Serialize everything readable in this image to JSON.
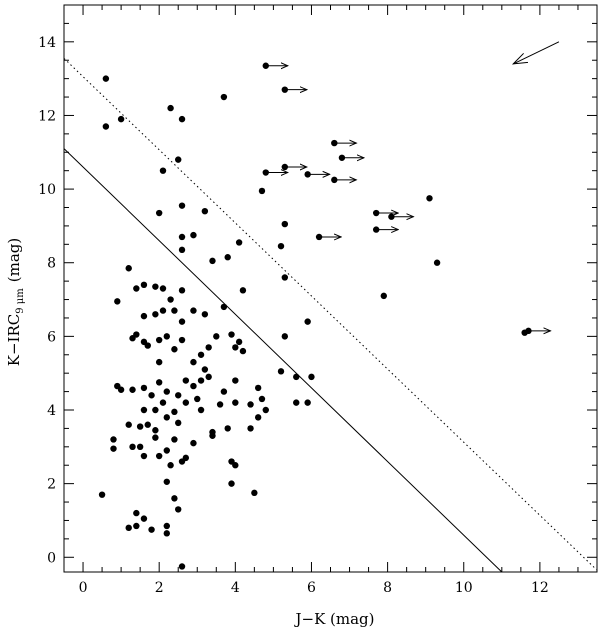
{
  "chart_data": {
    "type": "scatter",
    "xlabel": "J−K (mag)",
    "ylabel_main": "K−IRC",
    "ylabel_sub": "9 μm",
    "ylabel_unit": "(mag)",
    "xlim": [
      -0.5,
      13.5
    ],
    "ylim": [
      -0.4,
      15.0
    ],
    "x_ticks": [
      0,
      2,
      4,
      6,
      8,
      10,
      12
    ],
    "y_ticks": [
      0,
      2,
      4,
      6,
      8,
      10,
      12,
      14
    ],
    "x_tick_labels": [
      "0",
      "2",
      "4",
      "6",
      "8",
      "10",
      "12"
    ],
    "y_tick_labels": [
      "0",
      "2",
      "4",
      "6",
      "8",
      "10",
      "12",
      "14"
    ],
    "grid": false,
    "lines": [
      {
        "style": "solid",
        "x": [
          -0.5,
          11.0
        ],
        "y": [
          11.1,
          -0.4
        ]
      },
      {
        "style": "dotted",
        "x": [
          -0.5,
          13.5
        ],
        "y": [
          13.55,
          -0.35
        ]
      }
    ],
    "reddening_vector": {
      "x": [
        12.5,
        11.3
      ],
      "y": [
        14.0,
        13.4
      ]
    },
    "lower_limits": [
      {
        "x": 4.8,
        "y": 13.35
      },
      {
        "x": 5.3,
        "y": 12.7
      },
      {
        "x": 4.8,
        "y": 10.45
      },
      {
        "x": 5.3,
        "y": 10.6
      },
      {
        "x": 5.9,
        "y": 10.4
      },
      {
        "x": 6.6,
        "y": 10.25
      },
      {
        "x": 6.6,
        "y": 11.25
      },
      {
        "x": 6.8,
        "y": 10.85
      },
      {
        "x": 7.7,
        "y": 9.35
      },
      {
        "x": 8.1,
        "y": 9.25
      },
      {
        "x": 7.7,
        "y": 8.9
      },
      {
        "x": 6.2,
        "y": 8.7
      },
      {
        "x": 11.7,
        "y": 6.15
      }
    ],
    "points": [
      [
        0.6,
        13.0
      ],
      [
        0.6,
        11.7
      ],
      [
        1.0,
        11.9
      ],
      [
        2.3,
        12.2
      ],
      [
        2.6,
        11.9
      ],
      [
        3.7,
        12.5
      ],
      [
        2.5,
        10.8
      ],
      [
        2.1,
        10.5
      ],
      [
        4.7,
        9.95
      ],
      [
        2.6,
        9.55
      ],
      [
        2.0,
        9.35
      ],
      [
        3.2,
        9.4
      ],
      [
        5.3,
        9.05
      ],
      [
        5.2,
        8.45
      ],
      [
        2.9,
        8.75
      ],
      [
        2.6,
        8.7
      ],
      [
        2.6,
        8.35
      ],
      [
        3.8,
        8.15
      ],
      [
        3.4,
        8.05
      ],
      [
        4.1,
        8.55
      ],
      [
        9.1,
        9.75
      ],
      [
        9.3,
        8.0
      ],
      [
        5.3,
        7.6
      ],
      [
        1.2,
        7.85
      ],
      [
        4.2,
        7.25
      ],
      [
        7.9,
        7.1
      ],
      [
        0.9,
        6.95
      ],
      [
        1.4,
        7.3
      ],
      [
        1.6,
        7.4
      ],
      [
        1.9,
        7.35
      ],
      [
        2.1,
        7.3
      ],
      [
        2.3,
        7.0
      ],
      [
        2.6,
        7.25
      ],
      [
        2.1,
        6.7
      ],
      [
        2.4,
        6.7
      ],
      [
        1.6,
        6.55
      ],
      [
        1.9,
        6.6
      ],
      [
        2.6,
        6.4
      ],
      [
        3.2,
        6.6
      ],
      [
        3.7,
        6.8
      ],
      [
        3.9,
        6.05
      ],
      [
        2.9,
        6.7
      ],
      [
        1.3,
        5.95
      ],
      [
        1.4,
        6.05
      ],
      [
        1.6,
        5.85
      ],
      [
        1.7,
        5.75
      ],
      [
        2.0,
        5.9
      ],
      [
        2.2,
        6.0
      ],
      [
        2.4,
        5.65
      ],
      [
        2.6,
        5.9
      ],
      [
        3.1,
        5.5
      ],
      [
        3.3,
        5.7
      ],
      [
        3.5,
        6.0
      ],
      [
        4.0,
        5.7
      ],
      [
        4.1,
        5.85
      ],
      [
        4.2,
        5.6
      ],
      [
        5.9,
        6.4
      ],
      [
        5.3,
        6.0
      ],
      [
        11.6,
        6.1
      ],
      [
        2.0,
        5.3
      ],
      [
        2.9,
        5.3
      ],
      [
        3.2,
        5.1
      ],
      [
        5.2,
        5.05
      ],
      [
        5.6,
        4.9
      ],
      [
        6.0,
        4.9
      ],
      [
        1.0,
        4.55
      ],
      [
        1.3,
        4.55
      ],
      [
        1.6,
        4.6
      ],
      [
        1.8,
        4.4
      ],
      [
        2.0,
        4.75
      ],
      [
        2.2,
        4.5
      ],
      [
        2.5,
        4.4
      ],
      [
        2.7,
        4.8
      ],
      [
        2.9,
        4.65
      ],
      [
        3.1,
        4.8
      ],
      [
        3.3,
        4.9
      ],
      [
        3.7,
        4.5
      ],
      [
        4.0,
        4.8
      ],
      [
        4.6,
        4.6
      ],
      [
        4.7,
        4.3
      ],
      [
        4.8,
        4.0
      ],
      [
        0.9,
        4.65
      ],
      [
        1.6,
        4.0
      ],
      [
        1.9,
        4.0
      ],
      [
        2.1,
        4.2
      ],
      [
        2.4,
        3.95
      ],
      [
        2.7,
        4.2
      ],
      [
        3.0,
        4.3
      ],
      [
        3.1,
        4.0
      ],
      [
        3.6,
        4.15
      ],
      [
        4.0,
        4.2
      ],
      [
        4.4,
        4.15
      ],
      [
        4.6,
        3.8
      ],
      [
        5.6,
        4.2
      ],
      [
        5.9,
        4.2
      ],
      [
        1.2,
        3.6
      ],
      [
        1.5,
        3.55
      ],
      [
        1.7,
        3.6
      ],
      [
        1.9,
        3.45
      ],
      [
        2.2,
        3.8
      ],
      [
        2.5,
        3.65
      ],
      [
        3.4,
        3.4
      ],
      [
        3.8,
        3.5
      ],
      [
        4.4,
        3.5
      ],
      [
        0.8,
        3.2
      ],
      [
        1.3,
        3.0
      ],
      [
        1.5,
        3.0
      ],
      [
        1.9,
        3.25
      ],
      [
        2.2,
        2.9
      ],
      [
        2.4,
        3.2
      ],
      [
        2.6,
        2.6
      ],
      [
        2.9,
        3.1
      ],
      [
        3.4,
        3.3
      ],
      [
        3.9,
        2.6
      ],
      [
        4.0,
        2.5
      ],
      [
        0.8,
        2.95
      ],
      [
        1.6,
        2.75
      ],
      [
        2.0,
        2.75
      ],
      [
        2.3,
        2.5
      ],
      [
        2.7,
        2.7
      ],
      [
        2.2,
        2.05
      ],
      [
        3.9,
        2.0
      ],
      [
        4.5,
        1.75
      ],
      [
        0.5,
        1.7
      ],
      [
        2.4,
        1.6
      ],
      [
        2.5,
        1.3
      ],
      [
        1.4,
        1.2
      ],
      [
        1.6,
        1.05
      ],
      [
        1.2,
        0.8
      ],
      [
        1.4,
        0.85
      ],
      [
        1.8,
        0.75
      ],
      [
        2.2,
        0.85
      ],
      [
        2.2,
        0.65
      ],
      [
        2.6,
        -0.25
      ]
    ]
  }
}
